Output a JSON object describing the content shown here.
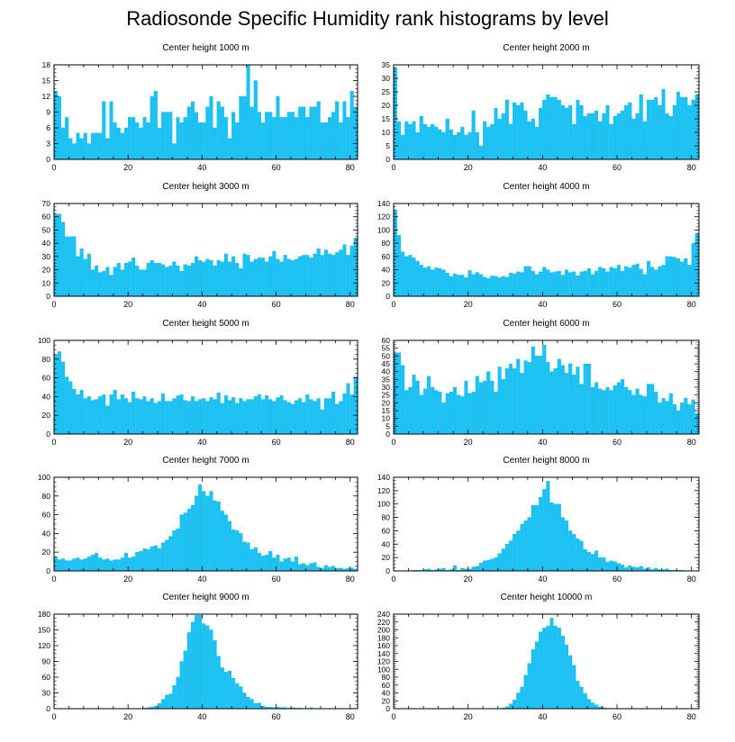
{
  "title": "Radiosonde Specific Humidity rank histograms by level",
  "colors": {
    "bar": "#19c3f5",
    "bar_edge": "#0aa9dc",
    "axis": "#000000"
  },
  "chart_data": [
    {
      "type": "bar",
      "title": "Center height 1000 m",
      "xlabel": "",
      "ylabel": "",
      "x_start": 0,
      "xlim": [
        0,
        82
      ],
      "xticks": [
        0,
        20,
        40,
        60,
        80
      ],
      "ylim": [
        0,
        18
      ],
      "yticks": [
        0,
        3,
        6,
        9,
        12,
        15,
        18
      ],
      "values": [
        13,
        12,
        6,
        8,
        4,
        3,
        5,
        4,
        5,
        3,
        5,
        5,
        5,
        11,
        4,
        11,
        7,
        6,
        5,
        6,
        8,
        8,
        7,
        6,
        8,
        7,
        12,
        13,
        6,
        9,
        9,
        9,
        3,
        8,
        7,
        8,
        10,
        11,
        9,
        7,
        7,
        10,
        12,
        6,
        11,
        10,
        8,
        4,
        9,
        7,
        12,
        12,
        18,
        10,
        15,
        9,
        7,
        9,
        9,
        8,
        12,
        8,
        8,
        9,
        9,
        8,
        10,
        10,
        8,
        10,
        10,
        11,
        7,
        7,
        8,
        9,
        11,
        7,
        11,
        8,
        13,
        10
      ]
    },
    {
      "type": "bar",
      "title": "Center height 2000 m",
      "xlabel": "",
      "ylabel": "",
      "x_start": 0,
      "xlim": [
        0,
        82
      ],
      "xticks": [
        0,
        20,
        40,
        60,
        80
      ],
      "ylim": [
        0,
        35
      ],
      "yticks": [
        0,
        5,
        10,
        15,
        20,
        25,
        30,
        35
      ],
      "values": [
        34,
        14,
        9,
        14,
        13,
        14,
        10,
        16,
        13,
        12,
        13,
        12,
        11,
        10,
        15,
        11,
        9,
        10,
        12,
        9,
        10,
        18,
        10,
        5,
        14,
        12,
        13,
        19,
        15,
        17,
        22,
        13,
        21,
        20,
        21,
        18,
        14,
        15,
        12,
        19,
        22,
        24,
        23,
        23,
        22,
        20,
        19,
        20,
        13,
        22,
        20,
        16,
        17,
        17,
        18,
        14,
        17,
        20,
        13,
        16,
        17,
        18,
        20,
        21,
        15,
        17,
        24,
        14,
        22,
        22,
        23,
        20,
        26,
        17,
        16,
        20,
        25,
        23,
        23,
        20,
        22,
        24
      ]
    },
    {
      "type": "bar",
      "title": "Center height 3000 m",
      "xlabel": "",
      "ylabel": "",
      "x_start": 0,
      "xlim": [
        0,
        82
      ],
      "xticks": [
        0,
        20,
        40,
        60,
        80
      ],
      "ylim": [
        0,
        70
      ],
      "yticks": [
        0,
        10,
        20,
        30,
        40,
        50,
        60,
        70
      ],
      "values": [
        62,
        62,
        56,
        45,
        45,
        45,
        30,
        36,
        28,
        32,
        20,
        23,
        18,
        19,
        22,
        16,
        22,
        25,
        20,
        25,
        26,
        29,
        23,
        20,
        20,
        25,
        27,
        25,
        25,
        24,
        22,
        23,
        26,
        23,
        19,
        24,
        23,
        25,
        30,
        27,
        26,
        28,
        27,
        23,
        27,
        26,
        32,
        26,
        30,
        25,
        21,
        32,
        31,
        26,
        28,
        29,
        29,
        26,
        30,
        34,
        28,
        26,
        31,
        28,
        27,
        28,
        30,
        31,
        31,
        29,
        32,
        36,
        31,
        35,
        32,
        31,
        33,
        35,
        39,
        31,
        38,
        44
      ]
    },
    {
      "type": "bar",
      "title": "Center height 4000 m",
      "xlabel": "",
      "ylabel": "",
      "x_start": 0,
      "xlim": [
        0,
        82
      ],
      "xticks": [
        0,
        20,
        40,
        60,
        80
      ],
      "ylim": [
        0,
        140
      ],
      "yticks": [
        0,
        20,
        40,
        60,
        80,
        100,
        120,
        140
      ],
      "values": [
        130,
        92,
        67,
        60,
        62,
        58,
        53,
        47,
        43,
        45,
        40,
        43,
        42,
        40,
        35,
        30,
        34,
        32,
        32,
        28,
        39,
        33,
        36,
        33,
        29,
        27,
        31,
        30,
        28,
        30,
        29,
        35,
        34,
        37,
        36,
        45,
        45,
        38,
        33,
        37,
        44,
        40,
        36,
        37,
        38,
        32,
        40,
        36,
        37,
        31,
        37,
        38,
        42,
        33,
        38,
        44,
        42,
        37,
        44,
        42,
        47,
        38,
        45,
        43,
        47,
        49,
        41,
        33,
        53,
        44,
        40,
        45,
        47,
        60,
        60,
        59,
        57,
        52,
        57,
        47,
        80,
        95
      ]
    },
    {
      "type": "bar",
      "title": "Center height 5000 m",
      "xlabel": "",
      "ylabel": "",
      "x_start": 0,
      "xlim": [
        0,
        82
      ],
      "xticks": [
        0,
        20,
        40,
        60,
        80
      ],
      "ylim": [
        0,
        100
      ],
      "yticks": [
        0,
        20,
        40,
        60,
        80,
        100
      ],
      "values": [
        85,
        88,
        77,
        61,
        56,
        48,
        42,
        47,
        38,
        40,
        36,
        37,
        40,
        42,
        30,
        42,
        47,
        37,
        42,
        38,
        34,
        45,
        38,
        37,
        40,
        35,
        38,
        33,
        35,
        43,
        35,
        35,
        38,
        41,
        42,
        36,
        35,
        40,
        35,
        37,
        38,
        35,
        39,
        37,
        44,
        33,
        41,
        36,
        39,
        33,
        38,
        35,
        37,
        37,
        40,
        42,
        37,
        41,
        37,
        35,
        39,
        41,
        36,
        34,
        32,
        36,
        38,
        34,
        42,
        37,
        35,
        38,
        26,
        38,
        38,
        45,
        32,
        35,
        43,
        54,
        42,
        61
      ]
    },
    {
      "type": "bar",
      "title": "Center height 6000 m",
      "xlabel": "",
      "ylabel": "",
      "x_start": 0,
      "xlim": [
        0,
        82
      ],
      "xticks": [
        0,
        20,
        40,
        60,
        80
      ],
      "ylim": [
        0,
        60
      ],
      "yticks": [
        0,
        5,
        10,
        15,
        20,
        25,
        30,
        35,
        40,
        45,
        50,
        55,
        60
      ],
      "values": [
        52,
        52,
        44,
        28,
        30,
        38,
        34,
        25,
        29,
        37,
        30,
        28,
        27,
        20,
        26,
        27,
        30,
        25,
        24,
        34,
        26,
        27,
        37,
        33,
        34,
        40,
        34,
        27,
        43,
        35,
        42,
        45,
        42,
        48,
        39,
        47,
        46,
        56,
        50,
        50,
        57,
        46,
        40,
        42,
        48,
        44,
        39,
        45,
        38,
        43,
        32,
        45,
        45,
        30,
        33,
        29,
        28,
        30,
        28,
        31,
        33,
        35,
        30,
        28,
        25,
        29,
        25,
        24,
        32,
        32,
        27,
        20,
        23,
        21,
        26,
        19,
        15,
        20,
        23,
        19,
        22,
        13
      ]
    },
    {
      "type": "bar",
      "title": "Center height 7000 m",
      "xlabel": "",
      "ylabel": "",
      "x_start": 0,
      "xlim": [
        0,
        82
      ],
      "xticks": [
        0,
        20,
        40,
        60,
        80
      ],
      "ylim": [
        0,
        100
      ],
      "yticks": [
        0,
        20,
        40,
        60,
        80,
        100
      ],
      "values": [
        15,
        12,
        13,
        11,
        11,
        13,
        14,
        12,
        13,
        15,
        17,
        19,
        14,
        12,
        13,
        11,
        12,
        12,
        14,
        19,
        14,
        15,
        20,
        21,
        24,
        23,
        26,
        27,
        24,
        30,
        33,
        37,
        43,
        45,
        60,
        62,
        66,
        70,
        80,
        92,
        85,
        80,
        85,
        75,
        74,
        64,
        60,
        53,
        44,
        43,
        40,
        31,
        30,
        23,
        25,
        19,
        16,
        17,
        21,
        14,
        17,
        10,
        13,
        14,
        10,
        15,
        7,
        8,
        6,
        8,
        9,
        4,
        3,
        6,
        4,
        5,
        3,
        3,
        2,
        3,
        3,
        2
      ]
    },
    {
      "type": "bar",
      "title": "Center height 8000 m",
      "xlabel": "",
      "ylabel": "",
      "x_start": 0,
      "xlim": [
        0,
        82
      ],
      "xticks": [
        0,
        20,
        40,
        60,
        80
      ],
      "ylim": [
        0,
        140
      ],
      "yticks": [
        0,
        20,
        40,
        60,
        80,
        100,
        120,
        140
      ],
      "values": [
        0,
        0,
        0,
        0,
        0,
        1,
        1,
        1,
        2,
        3,
        1,
        2,
        3,
        4,
        1,
        2,
        8,
        1,
        4,
        3,
        3,
        6,
        7,
        12,
        15,
        16,
        18,
        20,
        26,
        33,
        40,
        45,
        55,
        60,
        70,
        75,
        80,
        98,
        98,
        110,
        122,
        134,
        102,
        100,
        100,
        80,
        75,
        60,
        55,
        48,
        45,
        32,
        28,
        25,
        30,
        20,
        20,
        13,
        15,
        14,
        11,
        9,
        5,
        8,
        6,
        5,
        7,
        3,
        5,
        2,
        4,
        2,
        2,
        3,
        1,
        1,
        1,
        1,
        0,
        0,
        0,
        0
      ]
    },
    {
      "type": "bar",
      "title": "Center height 9000 m",
      "xlabel": "",
      "ylabel": "",
      "x_start": 0,
      "xlim": [
        0,
        82
      ],
      "xticks": [
        0,
        20,
        40,
        60,
        80
      ],
      "ylim": [
        0,
        180
      ],
      "yticks": [
        0,
        30,
        60,
        90,
        120,
        150,
        180
      ],
      "values": [
        0,
        0,
        0,
        0,
        0,
        0,
        0,
        0,
        0,
        0,
        0,
        0,
        0,
        0,
        0,
        0,
        0,
        0,
        0,
        0,
        0,
        0,
        0,
        0,
        1,
        2,
        3,
        5,
        10,
        18,
        26,
        28,
        44,
        60,
        90,
        110,
        145,
        165,
        178,
        178,
        162,
        158,
        150,
        130,
        100,
        78,
        70,
        72,
        58,
        48,
        42,
        30,
        22,
        18,
        10,
        11,
        5,
        3,
        3,
        2,
        3,
        2,
        2,
        1,
        2,
        1,
        1,
        0,
        0,
        2,
        0,
        0,
        0,
        0,
        0,
        0,
        0,
        0,
        0,
        0,
        0,
        0
      ]
    },
    {
      "type": "bar",
      "title": "Center height 10000 m",
      "xlabel": "",
      "ylabel": "",
      "x_start": 0,
      "xlim": [
        0,
        82
      ],
      "xticks": [
        0,
        20,
        40,
        60,
        80
      ],
      "ylim": [
        0,
        240
      ],
      "yticks": [
        0,
        20,
        40,
        60,
        80,
        100,
        120,
        140,
        160,
        180,
        200,
        220,
        240
      ],
      "values": [
        0,
        0,
        0,
        0,
        0,
        0,
        0,
        0,
        0,
        0,
        0,
        0,
        0,
        0,
        0,
        0,
        0,
        0,
        0,
        0,
        0,
        0,
        0,
        0,
        0,
        0,
        0,
        0,
        1,
        2,
        5,
        12,
        22,
        40,
        55,
        85,
        115,
        150,
        170,
        195,
        205,
        210,
        230,
        210,
        205,
        185,
        162,
        135,
        110,
        70,
        55,
        38,
        24,
        15,
        10,
        5,
        3,
        1,
        1,
        0,
        0,
        0,
        0,
        0,
        0,
        0,
        0,
        0,
        0,
        0,
        0,
        0,
        0,
        0,
        0,
        0,
        0,
        0,
        0,
        0,
        0,
        0
      ]
    }
  ]
}
